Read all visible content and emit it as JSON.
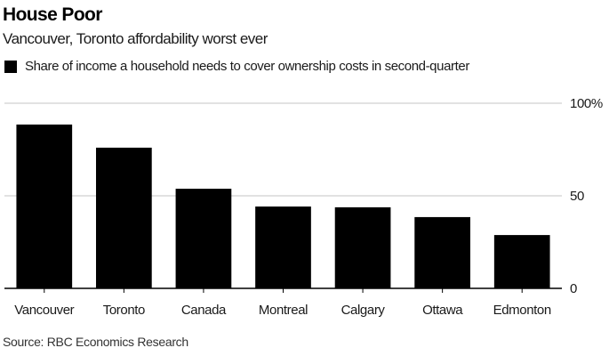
{
  "header": {
    "title": "House Poor",
    "subtitle": "Vancouver, Toronto affordability worst ever"
  },
  "legend": {
    "label": "Share of income a household needs to cover ownership costs in second-quarter",
    "color": "#000000"
  },
  "footer": {
    "source": "Source: RBC Economics Research"
  },
  "chart_data": {
    "type": "bar",
    "title": "House Poor",
    "subtitle": "Vancouver, Toronto affordability worst ever",
    "categories": [
      "Vancouver",
      "Toronto",
      "Canada",
      "Montreal",
      "Calgary",
      "Ottawa",
      "Edmonton"
    ],
    "series": [
      {
        "name": "Share of income a household needs to cover ownership costs in second-quarter",
        "values": [
          88.5,
          76.0,
          53.8,
          44.2,
          43.8,
          38.5,
          28.8
        ],
        "color": "#000000"
      }
    ],
    "xlabel": "",
    "ylabel": "",
    "ylim": [
      0,
      100
    ],
    "yticks": [
      0,
      50,
      100
    ],
    "ytick_labels": [
      "0",
      "50",
      "100%"
    ],
    "y_axis_side": "right",
    "grid": true,
    "legend_position": "top-left",
    "source": "Source: RBC Economics Research"
  }
}
